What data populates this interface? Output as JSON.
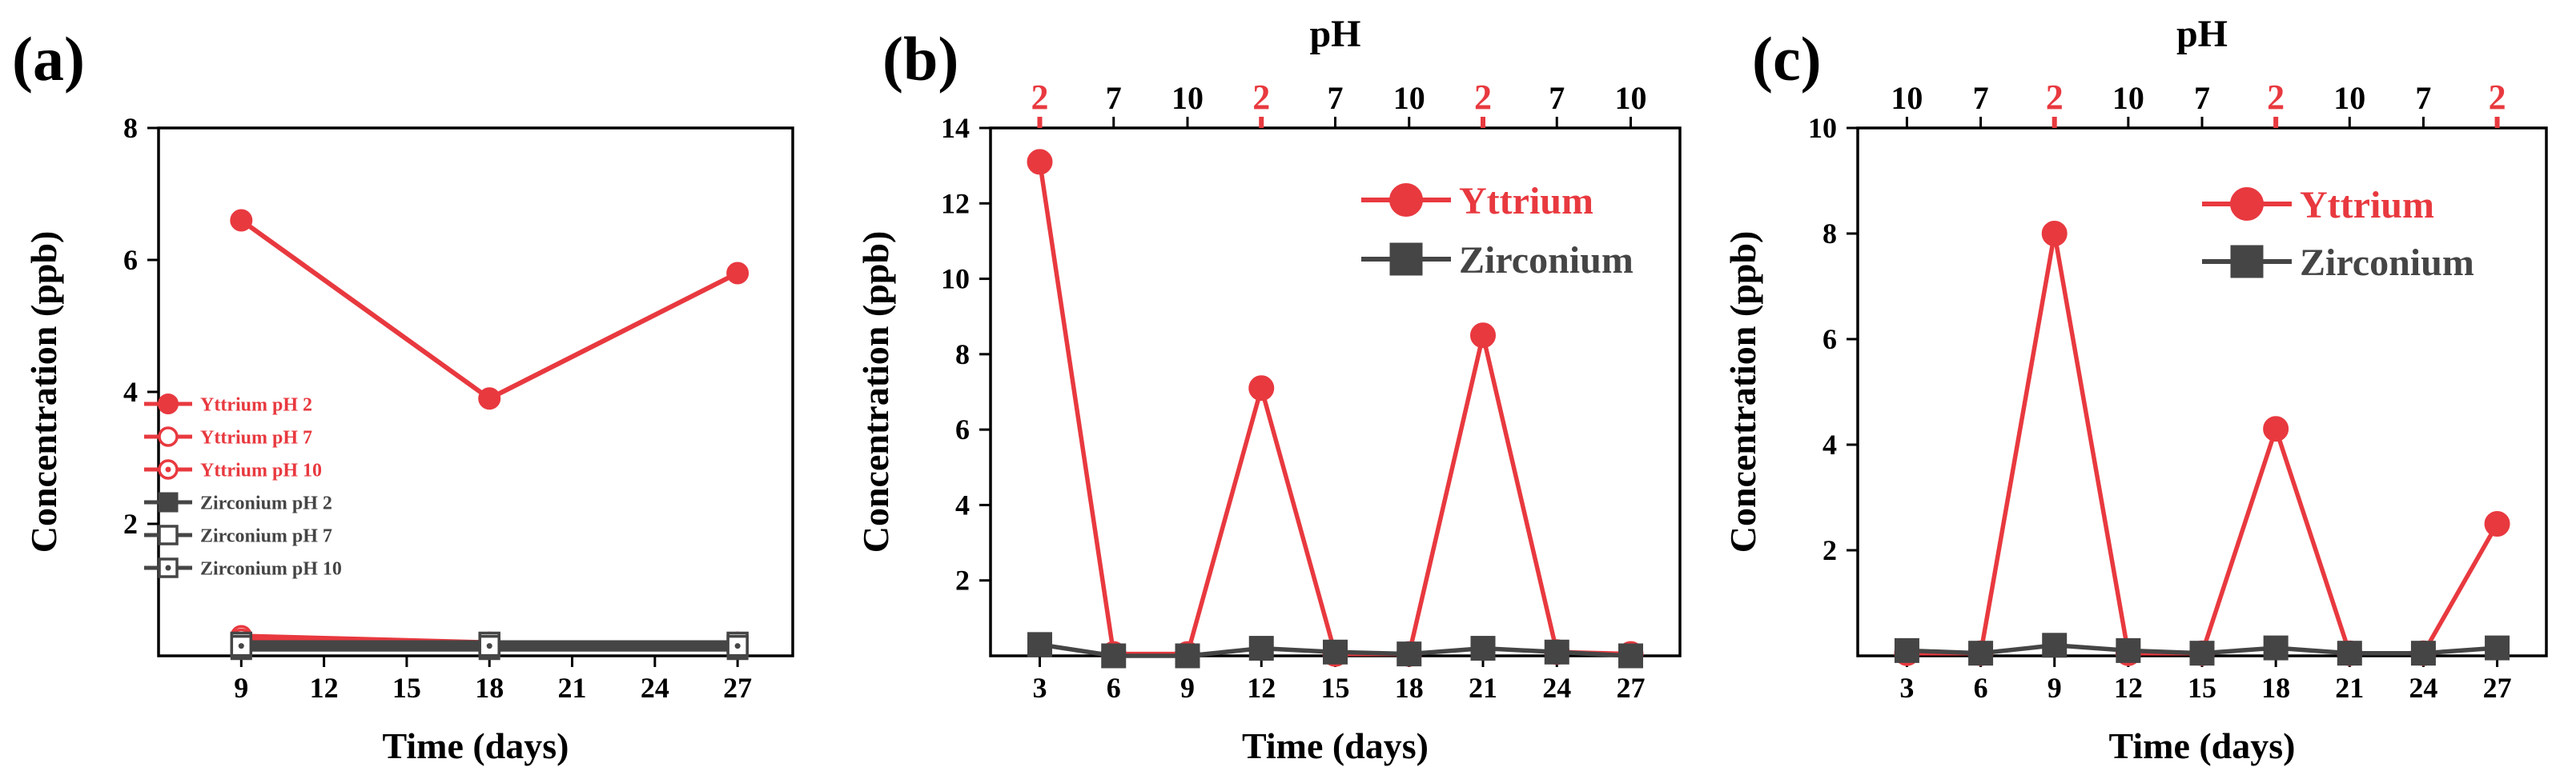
{
  "colors": {
    "yttrium": "#e8393f",
    "zirconium": "#454545",
    "axis": "#000000"
  },
  "chart_data": [
    {
      "panel_label": "(a)",
      "type": "line",
      "xlabel": "Time (days)",
      "ylabel": "Concentration (ppb)",
      "xlim": [
        6,
        29
      ],
      "ylim": [
        0,
        8
      ],
      "xticks": [
        9,
        12,
        15,
        18,
        21,
        24,
        27
      ],
      "yticks": [
        2,
        4,
        6,
        8
      ],
      "legend_position": "center-left",
      "series": [
        {
          "name": "Yttrium pH 2",
          "element": "yttrium",
          "marker": "filled-circle",
          "x": [
            9,
            18,
            27
          ],
          "y": [
            6.6,
            3.9,
            5.8
          ]
        },
        {
          "name": "Yttrium pH 7",
          "element": "yttrium",
          "marker": "open-circle",
          "x": [
            9,
            18,
            27
          ],
          "y": [
            0.3,
            0.2,
            0.2
          ]
        },
        {
          "name": "Yttrium pH 10",
          "element": "yttrium",
          "marker": "dot-circle",
          "x": [
            9,
            18,
            27
          ],
          "y": [
            0.25,
            0.2,
            0.2
          ]
        },
        {
          "name": "Zirconium pH 2",
          "element": "zirconium",
          "marker": "filled-square",
          "x": [
            9,
            18,
            27
          ],
          "y": [
            0.1,
            0.1,
            0.1
          ]
        },
        {
          "name": "Zirconium pH 7",
          "element": "zirconium",
          "marker": "open-square",
          "x": [
            9,
            18,
            27
          ],
          "y": [
            0.2,
            0.2,
            0.2
          ]
        },
        {
          "name": "Zirconium pH 10",
          "element": "zirconium",
          "marker": "dot-square",
          "x": [
            9,
            18,
            27
          ],
          "y": [
            0.15,
            0.15,
            0.15
          ]
        }
      ]
    },
    {
      "panel_label": "(b)",
      "type": "line",
      "title": "pH",
      "xlabel": "Time (days)",
      "ylabel": "Concentration (ppb)",
      "xlim": [
        1,
        29
      ],
      "ylim": [
        0,
        14
      ],
      "xticks": [
        3,
        6,
        9,
        12,
        15,
        18,
        21,
        24,
        27
      ],
      "yticks": [
        2,
        4,
        6,
        8,
        10,
        12,
        14
      ],
      "ph_top_axis": [
        "2",
        "7",
        "10",
        "2",
        "7",
        "10",
        "2",
        "7",
        "10"
      ],
      "legend_position": "top-right",
      "series": [
        {
          "name": "Yttrium",
          "element": "yttrium",
          "marker": "filled-circle",
          "x": [
            3,
            6,
            9,
            12,
            15,
            18,
            21,
            24,
            27
          ],
          "y": [
            13.1,
            0.05,
            0.05,
            7.1,
            0.05,
            0.05,
            8.5,
            0.1,
            0.05
          ]
        },
        {
          "name": "Zirconium",
          "element": "zirconium",
          "marker": "filled-square",
          "x": [
            3,
            6,
            9,
            12,
            15,
            18,
            21,
            24,
            27
          ],
          "y": [
            0.3,
            0.0,
            0.0,
            0.2,
            0.1,
            0.05,
            0.2,
            0.1,
            0.0
          ]
        }
      ]
    },
    {
      "panel_label": "(c)",
      "type": "line",
      "title": "pH",
      "xlabel": "Time (days)",
      "ylabel": "Concentration (ppb)",
      "xlim": [
        1,
        29
      ],
      "ylim": [
        0,
        10
      ],
      "xticks": [
        3,
        6,
        9,
        12,
        15,
        18,
        21,
        24,
        27
      ],
      "yticks": [
        2,
        4,
        6,
        8,
        10
      ],
      "ph_top_axis": [
        "10",
        "7",
        "2",
        "10",
        "7",
        "2",
        "10",
        "7",
        "2"
      ],
      "legend_position": "top-right",
      "series": [
        {
          "name": "Yttrium",
          "element": "yttrium",
          "marker": "filled-circle",
          "x": [
            3,
            6,
            9,
            12,
            15,
            18,
            21,
            24,
            27
          ],
          "y": [
            0.05,
            0.05,
            8.0,
            0.05,
            0.05,
            4.3,
            0.05,
            0.05,
            2.5
          ]
        },
        {
          "name": "Zirconium",
          "element": "zirconium",
          "marker": "filled-square",
          "x": [
            3,
            6,
            9,
            12,
            15,
            18,
            21,
            24,
            27
          ],
          "y": [
            0.1,
            0.05,
            0.2,
            0.1,
            0.05,
            0.15,
            0.05,
            0.05,
            0.15
          ]
        }
      ]
    }
  ]
}
